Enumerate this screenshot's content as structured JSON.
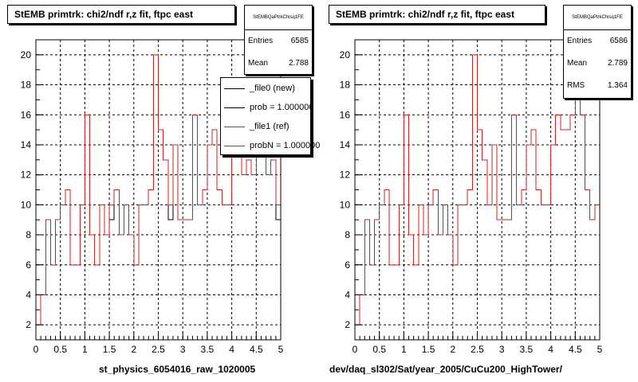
{
  "colors": {
    "file0": "#000000",
    "file1": "#cc2222",
    "grid": "#000000",
    "background": "#ffffff"
  },
  "left_panel": {
    "title": "StEMB primtrk: chi2/ndf r,z fit, ftpc east",
    "stats": {
      "name": "StEMBQaPtrkChisq1FE",
      "entries_label": "Entries",
      "entries": "6585",
      "mean_label": "Mean",
      "mean": "2.788"
    },
    "legend": [
      {
        "label": "_file0 (new)",
        "color": "#000000"
      },
      {
        "label": "prob = 1.000000",
        "color": "#000000"
      },
      {
        "label": "_file1 (ref)",
        "color": "#cc2222"
      },
      {
        "label": "probN = 1.000000",
        "color": "#cc2222"
      }
    ],
    "xlabel": "st_physics_6054016_raw_1020005"
  },
  "right_panel": {
    "title": "StEMB primtrk: chi2/ndf r,z fit, ftpc east",
    "stats": {
      "name": "StEMBQaPtrkChisq1FE",
      "entries_label": "Entries",
      "entries": "6586",
      "mean_label": "Mean",
      "mean": "2.789",
      "rms_label": "RMS",
      "rms": "1.364"
    },
    "xlabel": "dev/daq_sl302/Sat/year_2005/CuCu200_HighTower/"
  },
  "chart_data": [
    {
      "type": "step-histogram",
      "title": "StEMB primtrk: chi2/ndf r,z fit, ftpc east",
      "xlabel": "st_physics_6054016_raw_1020005",
      "ylabel": "",
      "xlim": [
        0,
        5
      ],
      "ylim": [
        1,
        21
      ],
      "xticks": [
        "0",
        "0.5",
        "1",
        "1.5",
        "2",
        "2.5",
        "3",
        "3.5",
        "4",
        "4.5",
        "5"
      ],
      "yticks": [
        "2",
        "4",
        "6",
        "8",
        "10",
        "12",
        "14",
        "16",
        "18",
        "20"
      ],
      "grid": true,
      "legend_position": "top-right",
      "bin_width": 0.1,
      "bin_start": 0,
      "series": [
        {
          "name": "_file0 (new)",
          "color": "#000000",
          "values": [
            2,
            4,
            9,
            6,
            9,
            10,
            11,
            6,
            6,
            10,
            16,
            8,
            6,
            10,
            8,
            9,
            11,
            8,
            10,
            8,
            6,
            10,
            10,
            11,
            20,
            15,
            13,
            9,
            14,
            9,
            9,
            9,
            16,
            10,
            11,
            14,
            15,
            11,
            10,
            10,
            14,
            16,
            12,
            13,
            12,
            16,
            14,
            12,
            13,
            9
          ]
        },
        {
          "name": "_file1 (ref)",
          "color": "#cc2222",
          "values": [
            2,
            4,
            9,
            6,
            9,
            10,
            11,
            6,
            6,
            10,
            16,
            8,
            6,
            10,
            8,
            10,
            11,
            8,
            10,
            8,
            6,
            10,
            10,
            11,
            20,
            15,
            13,
            10,
            14,
            9,
            9,
            9,
            16,
            10,
            11,
            14,
            15,
            11,
            10,
            10,
            14,
            16,
            12,
            13,
            12,
            16,
            14,
            12,
            13,
            10
          ]
        }
      ]
    },
    {
      "type": "step-histogram",
      "title": "StEMB primtrk: chi2/ndf r,z fit, ftpc east",
      "xlabel": "dev/daq_sl302/Sat/year_2005/CuCu200_HighTower/",
      "ylabel": "",
      "xlim": [
        0,
        5
      ],
      "ylim": [
        1,
        21
      ],
      "xticks": [
        "0",
        "0.5",
        "1",
        "1.5",
        "2",
        "2.5",
        "3",
        "3.5",
        "4",
        "4.5",
        "5"
      ],
      "yticks": [
        "2",
        "4",
        "6",
        "8",
        "10",
        "12",
        "14",
        "16",
        "18",
        "20"
      ],
      "grid": true,
      "bin_width": 0.1,
      "bin_start": 0,
      "series": [
        {
          "name": "_file1 (ref)",
          "color": "#cc2222",
          "values": [
            2,
            4,
            9,
            6,
            9,
            10,
            11,
            6,
            6,
            10,
            16,
            8,
            6,
            10,
            8,
            10,
            11,
            8,
            10,
            8,
            6,
            10,
            10,
            11,
            20,
            15,
            13,
            10,
            14,
            9,
            9,
            9,
            16,
            10,
            11,
            14,
            15,
            11,
            10,
            10,
            14,
            16,
            15,
            15,
            16,
            17,
            16,
            11,
            9,
            10
          ]
        }
      ]
    }
  ]
}
